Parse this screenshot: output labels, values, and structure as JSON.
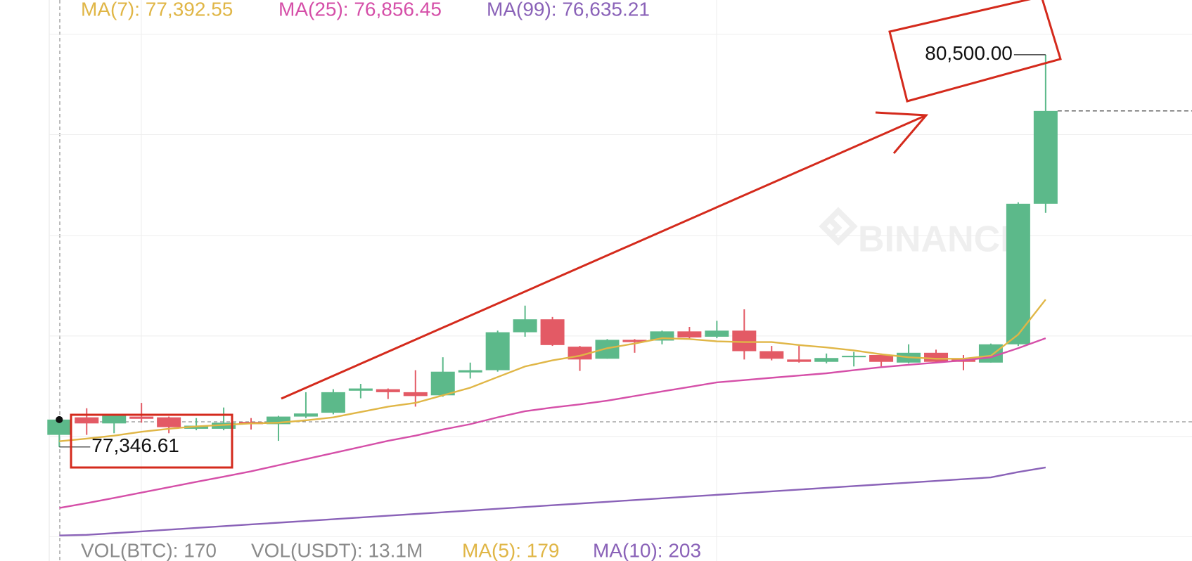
{
  "chart_data": {
    "type": "candlestick",
    "watermark": "BINANCE",
    "up_color": "#5cb98a",
    "down_color": "#e35a65",
    "ylim": [
      76430,
      80940
    ],
    "yticks": [
      80665,
      79858,
      79046,
      78239,
      77432,
      76626
    ],
    "grid": true,
    "high_label": "80,500.00",
    "low_label": "77,346.61",
    "open": [
      77444,
      77585,
      77536,
      77591,
      77585,
      77493,
      77493,
      77548,
      77530,
      77591,
      77622,
      77799,
      77811,
      77787,
      77762,
      77946,
      77964,
      78269,
      78373,
      78153,
      78056,
      78208,
      78202,
      78276,
      78233,
      78282,
      78117,
      78050,
      78031,
      78068,
      78086,
      78025,
      78104,
      78050,
      78025,
      78172,
      79302
    ],
    "high": [
      77579,
      77658,
      77609,
      77701,
      77591,
      77579,
      77664,
      77579,
      77597,
      77787,
      77811,
      77854,
      77817,
      77964,
      78068,
      78025,
      78282,
      78483,
      78392,
      78159,
      78214,
      78214,
      78282,
      78312,
      78361,
      78453,
      78159,
      78159,
      78098,
      78111,
      78098,
      78172,
      78129,
      78086,
      78178,
      79314,
      80500.0
    ],
    "low": [
      77346.61,
      77444,
      77457,
      77542,
      77457,
      77481,
      77481,
      77487,
      77396,
      77579,
      77609,
      77738,
      77732,
      77671,
      77750,
      77897,
      77952,
      78233,
      78159,
      77958,
      78056,
      78104,
      78172,
      78214,
      78221,
      78050,
      78043,
      78025,
      78019,
      77994,
      77994,
      78019,
      78019,
      77964,
      78025,
      78159,
      79229
    ],
    "close": [
      77567,
      77536,
      77597,
      77573,
      77506,
      77518,
      77542,
      77530,
      77591,
      77616,
      77787,
      77817,
      77787,
      77756,
      77952,
      77964,
      78269,
      78373,
      78166,
      78050,
      78208,
      78190,
      78276,
      78227,
      78282,
      78117,
      78056,
      78031,
      78062,
      78080,
      78031,
      78104,
      78031,
      78031,
      78172,
      79302,
      80048
    ],
    "series": [
      {
        "name": "MA(7): 77,392.55",
        "color": "#e0b646",
        "values": [
          77392.55,
          77414,
          77438,
          77469,
          77493,
          77512,
          77524,
          77536,
          77542,
          77561,
          77585,
          77628,
          77671,
          77701,
          77762,
          77823,
          77909,
          77994,
          78043,
          78080,
          78141,
          78178,
          78221,
          78214,
          78196,
          78190,
          78190,
          78166,
          78147,
          78123,
          78092,
          78068,
          78056,
          78056,
          78080,
          78251,
          78532
        ]
      },
      {
        "name": "MA(25): 76,856.45",
        "color": "#d54fa8",
        "values": [
          76856.45,
          76895,
          76937,
          76980,
          77023,
          77066,
          77108,
          77151,
          77200,
          77249,
          77298,
          77347,
          77396,
          77438,
          77487,
          77530,
          77585,
          77634,
          77664,
          77689,
          77719,
          77756,
          77793,
          77829,
          77866,
          77884,
          77903,
          77921,
          77939,
          77964,
          77988,
          78007,
          78025,
          78043,
          78068,
          78141,
          78221
        ]
      },
      {
        "name": "MA(99): 76,635.21",
        "color": "#8a62b8",
        "values": [
          76635.21,
          76640,
          76654,
          76668,
          76682,
          76696,
          76710,
          76724,
          76738,
          76752,
          76766,
          76780,
          76794,
          76808,
          76822,
          76836,
          76850,
          76864,
          76878,
          76892,
          76906,
          76920,
          76934,
          76948,
          76962,
          76976,
          76990,
          77004,
          77018,
          77032,
          77046,
          77060,
          77074,
          77088,
          77102,
          77145,
          77182
        ]
      }
    ],
    "volume_header": [
      {
        "text": "VOL(BTC): 170",
        "color": "#8a8a8a"
      },
      {
        "text": "VOL(USDT): 13.1M",
        "color": "#8a8a8a"
      },
      {
        "text": "MA(5): 179",
        "color": "#e0b646"
      },
      {
        "text": "MA(10): 203",
        "color": "#8a62b8"
      }
    ]
  }
}
